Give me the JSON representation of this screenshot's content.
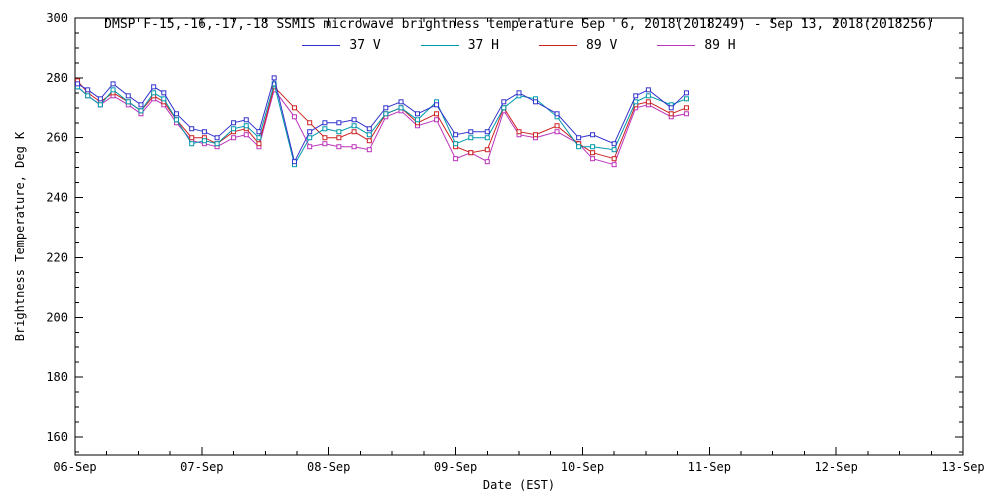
{
  "page": {
    "background": "#ffffff",
    "text_color": "#000000"
  },
  "chart_data": {
    "type": "line",
    "title": "DMSP F-15,-16,-17,-18 SSMIS microwave brightness temperature Sep  6, 2018(2018249) - Sep 13, 2018(2018256)",
    "xlabel": "Date (EST)",
    "ylabel": "Brightness Temperature, Deg K",
    "xlim": [
      6,
      13
    ],
    "ylim": [
      154,
      300
    ],
    "grid": false,
    "legend_position": "top-center",
    "x_major_ticks": [
      6,
      7,
      8,
      9,
      10,
      11,
      12,
      13
    ],
    "x_tick_labels": [
      "06-Sep",
      "07-Sep",
      "08-Sep",
      "09-Sep",
      "10-Sep",
      "11-Sep",
      "12-Sep",
      "13-Sep"
    ],
    "x_minor_step": 0.25,
    "y_major_ticks": [
      160,
      180,
      200,
      220,
      240,
      260,
      280,
      300
    ],
    "y_minor_step": 5,
    "marker": "open-square",
    "x": [
      6.02,
      6.1,
      6.2,
      6.3,
      6.42,
      6.52,
      6.62,
      6.7,
      6.8,
      6.92,
      7.02,
      7.12,
      7.25,
      7.35,
      7.45,
      7.57,
      7.73,
      7.85,
      7.97,
      8.08,
      8.2,
      8.32,
      8.45,
      8.57,
      8.7,
      8.85,
      9.0,
      9.12,
      9.25,
      9.38,
      9.5,
      9.63,
      9.8,
      9.97,
      10.08,
      10.25,
      10.42,
      10.52,
      10.7,
      10.82
    ],
    "series": [
      {
        "name": "37 V",
        "color": "#3333cc",
        "values": [
          278,
          276,
          273,
          278,
          274,
          271,
          277,
          275,
          268,
          263,
          262,
          260,
          265,
          266,
          262,
          280,
          252,
          262,
          265,
          265,
          266,
          263,
          270,
          272,
          268,
          271,
          261,
          262,
          262,
          272,
          275,
          272,
          268,
          260,
          261,
          258,
          274,
          276,
          270,
          275
        ]
      },
      {
        "name": "37 H",
        "color": "#0099aa",
        "values": [
          277,
          274,
          271,
          276,
          272,
          269,
          275,
          273,
          266,
          258,
          259,
          258,
          263,
          264,
          260,
          278,
          251,
          260,
          263,
          262,
          264,
          261,
          268,
          270,
          266,
          272,
          258,
          260,
          260,
          270,
          274,
          273,
          267,
          257,
          257,
          256,
          272,
          274,
          271,
          273
        ]
      },
      {
        "name": "89 V",
        "color": "#cc2222",
        "values": [
          279,
          275,
          272,
          275,
          272,
          269,
          274,
          272,
          266,
          260,
          260,
          258,
          262,
          263,
          258,
          277,
          270,
          265,
          260,
          260,
          262,
          259,
          268,
          270,
          265,
          268,
          257,
          255,
          256,
          270,
          262,
          261,
          264,
          258,
          255,
          253,
          271,
          272,
          268,
          270
        ]
      },
      {
        "name": "89 H",
        "color": "#bb33bb",
        "values": [
          277,
          274,
          271,
          274,
          271,
          268,
          273,
          271,
          265,
          259,
          258,
          257,
          260,
          261,
          257,
          276,
          267,
          257,
          258,
          257,
          257,
          256,
          267,
          269,
          264,
          266,
          253,
          255,
          252,
          269,
          261,
          260,
          262,
          258,
          253,
          251,
          270,
          271,
          267,
          268
        ]
      }
    ]
  }
}
